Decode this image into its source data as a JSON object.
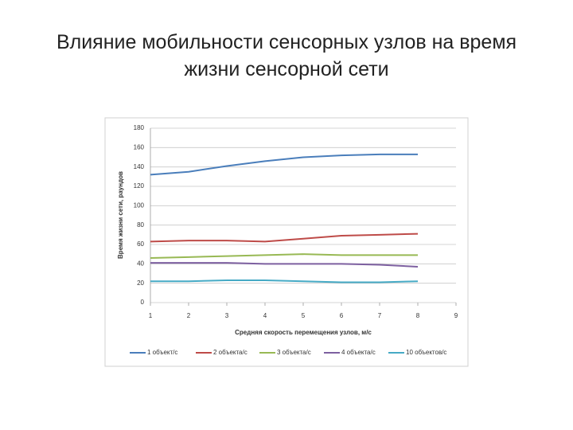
{
  "chart_data": {
    "type": "line",
    "title": "Влияние мобильности сенсорных узлов на время жизни сенсорной сети",
    "x_label": "Средняя скорость перемещения узлов, м/с",
    "y_label": "Время жизни сети, раундов",
    "x": [
      1,
      2,
      3,
      4,
      5,
      6,
      7,
      8
    ],
    "xlim": [
      1,
      9
    ],
    "xticks": [
      1,
      2,
      3,
      4,
      5,
      6,
      7,
      8,
      9
    ],
    "ylim": [
      0,
      180
    ],
    "yticks": [
      0,
      20,
      40,
      60,
      80,
      100,
      120,
      140,
      160,
      180
    ],
    "grid": true,
    "legend": "bottom",
    "series": [
      {
        "name": "1 объект/с",
        "color": "#4a7ebb",
        "values": [
          132,
          135,
          141,
          146,
          150,
          152,
          153,
          153
        ]
      },
      {
        "name": "2 объекта/с",
        "color": "#be4b48",
        "values": [
          63,
          64,
          64,
          63,
          66,
          69,
          70,
          71
        ]
      },
      {
        "name": "3 объекта/с",
        "color": "#98b954",
        "values": [
          46,
          47,
          48,
          49,
          50,
          49,
          49,
          49
        ]
      },
      {
        "name": "4 объекта/с",
        "color": "#7d60a0",
        "values": [
          41,
          41,
          41,
          40,
          40,
          40,
          39,
          37
        ]
      },
      {
        "name": "10 объектов/с",
        "color": "#46aac5",
        "values": [
          22,
          22,
          23,
          23,
          22,
          21,
          21,
          22
        ]
      }
    ]
  }
}
